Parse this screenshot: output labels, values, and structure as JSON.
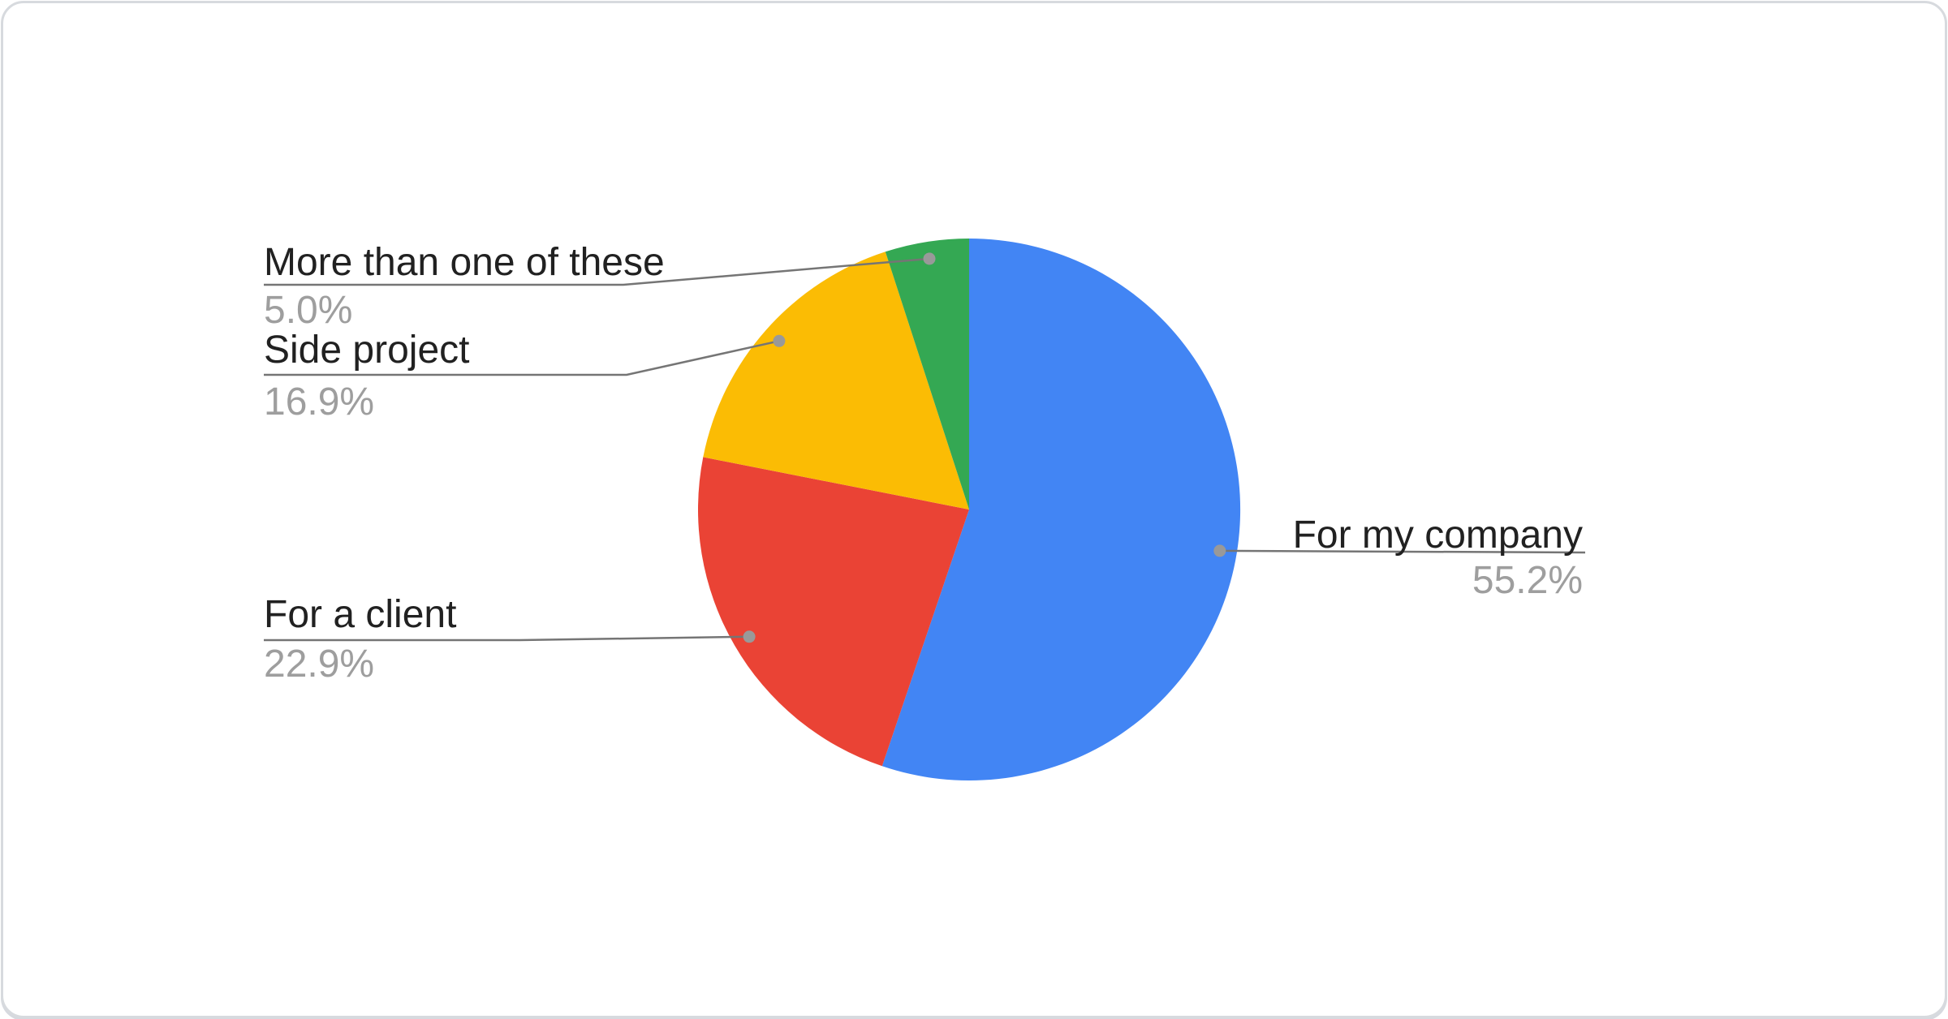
{
  "page": {
    "background_color": "#ffffff",
    "card_border_color": "#d7dade"
  },
  "chart_data": {
    "type": "pie",
    "title": "",
    "legend_position": "callout-labels",
    "direction": "clockwise",
    "start_angle_deg": 0,
    "slices": [
      {
        "name": "For my company",
        "value": 55.2,
        "pct_label": "55.2%",
        "color": "#4285F4"
      },
      {
        "name": "For a client",
        "value": 22.9,
        "pct_label": "22.9%",
        "color": "#EA4335"
      },
      {
        "name": "Side project",
        "value": 16.9,
        "pct_label": "16.9%",
        "color": "#FBBC04"
      },
      {
        "name": "More than one of these",
        "value": 5.0,
        "pct_label": "5.0%",
        "color": "#34A853"
      }
    ],
    "label_text_color": "#212121",
    "pct_text_color": "#9e9e9e",
    "callout_line_color": "#757575",
    "callout_dot_color": "#999999"
  }
}
